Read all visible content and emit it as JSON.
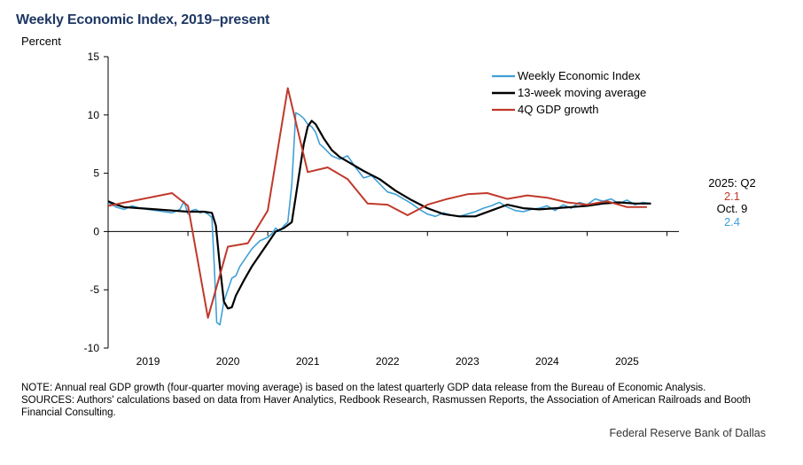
{
  "header": {
    "title": "Weekly Economic Index, 2019–present",
    "unit_label": "Percent"
  },
  "chart_data": {
    "type": "line",
    "title": "Weekly Economic Index, 2019–present",
    "ylabel": "Percent",
    "ylim": [
      -10,
      15
    ],
    "y_ticks": [
      15,
      10,
      5,
      0,
      -5,
      -10
    ],
    "xlim": [
      2018.0,
      2025.15
    ],
    "x_ticks": [
      2019,
      2020,
      2021,
      2022,
      2023,
      2024,
      2025
    ],
    "x_tick_labels": [
      "2019",
      "2020",
      "2021",
      "2022",
      "2023",
      "2024",
      "2025"
    ],
    "legend_position": "top-right",
    "grid": false,
    "series": [
      {
        "name": "Weekly Economic Index",
        "color": "#3fa0d6",
        "x": [
          2018.0,
          2018.1,
          2018.2,
          2018.3,
          2018.4,
          2018.5,
          2018.6,
          2018.7,
          2018.8,
          2018.9,
          2018.95,
          2019.0,
          2019.05,
          2019.1,
          2019.15,
          2019.2,
          2019.25,
          2019.3,
          2019.33,
          2019.36,
          2019.4,
          2019.45,
          2019.5,
          2019.55,
          2019.6,
          2019.65,
          2019.7,
          2019.8,
          2019.9,
          2020.0,
          2020.05,
          2020.1,
          2020.15,
          2020.2,
          2020.25,
          2020.3,
          2020.35,
          2020.4,
          2020.45,
          2020.5,
          2020.55,
          2020.6,
          2020.65,
          2020.7,
          2020.8,
          2020.9,
          2021.0,
          2021.1,
          2021.2,
          2021.3,
          2021.4,
          2021.5,
          2021.6,
          2021.7,
          2021.8,
          2021.9,
          2022.0,
          2022.1,
          2022.2,
          2022.3,
          2022.4,
          2022.5,
          2022.6,
          2022.7,
          2022.8,
          2022.9,
          2023.0,
          2023.1,
          2023.2,
          2023.3,
          2023.4,
          2023.5,
          2023.6,
          2023.7,
          2023.8,
          2023.9,
          2024.0,
          2024.1,
          2024.2,
          2024.3,
          2024.4,
          2024.5,
          2024.6,
          2024.7,
          2024.8
        ],
        "y": [
          2.5,
          2.1,
          1.9,
          2.2,
          2.0,
          1.9,
          1.8,
          1.7,
          1.6,
          1.9,
          2.6,
          1.5,
          1.8,
          1.9,
          1.6,
          1.7,
          1.5,
          1.2,
          -3.0,
          -7.8,
          -8.0,
          -6.0,
          -5.0,
          -4.0,
          -3.8,
          -3.0,
          -2.5,
          -1.5,
          -0.8,
          -0.5,
          -0.2,
          0.3,
          0.0,
          0.5,
          0.8,
          4.0,
          10.2,
          10.0,
          9.7,
          9.2,
          9.0,
          8.5,
          7.5,
          7.2,
          6.5,
          6.2,
          6.5,
          5.5,
          4.6,
          4.8,
          4.1,
          3.4,
          3.2,
          2.8,
          2.4,
          1.9,
          1.5,
          1.3,
          1.6,
          1.4,
          1.3,
          1.5,
          1.7,
          2.0,
          2.2,
          2.5,
          2.1,
          1.8,
          1.7,
          1.9,
          2.0,
          2.2,
          1.8,
          2.3,
          2.0,
          2.5,
          2.3,
          2.8,
          2.6,
          2.8,
          2.4,
          2.7,
          2.3,
          2.5,
          2.4
        ]
      },
      {
        "name": "13-week moving average",
        "color": "#000000",
        "x": [
          2018.0,
          2018.1,
          2018.2,
          2018.4,
          2018.6,
          2018.8,
          2019.0,
          2019.1,
          2019.2,
          2019.3,
          2019.35,
          2019.4,
          2019.45,
          2019.5,
          2019.55,
          2019.6,
          2019.7,
          2019.8,
          2019.9,
          2020.0,
          2020.1,
          2020.2,
          2020.3,
          2020.35,
          2020.45,
          2020.5,
          2020.55,
          2020.6,
          2020.7,
          2020.8,
          2020.9,
          2021.0,
          2021.2,
          2021.4,
          2021.6,
          2021.8,
          2022.0,
          2022.2,
          2022.4,
          2022.6,
          2022.8,
          2023.0,
          2023.2,
          2023.4,
          2023.6,
          2023.8,
          2024.0,
          2024.2,
          2024.4,
          2024.6,
          2024.8
        ],
        "y": [
          2.6,
          2.3,
          2.1,
          2.0,
          1.9,
          1.8,
          1.7,
          1.7,
          1.7,
          1.6,
          0.5,
          -3.0,
          -6.0,
          -6.6,
          -6.5,
          -5.5,
          -4.2,
          -3.0,
          -2.0,
          -1.0,
          0.0,
          0.3,
          0.8,
          3.0,
          7.5,
          9.0,
          9.5,
          9.2,
          8.0,
          7.0,
          6.4,
          6.0,
          5.2,
          4.5,
          3.5,
          2.7,
          2.0,
          1.5,
          1.3,
          1.3,
          1.8,
          2.3,
          2.0,
          1.9,
          2.0,
          2.1,
          2.2,
          2.4,
          2.5,
          2.4,
          2.4
        ]
      },
      {
        "name": "4Q GDP growth",
        "color": "#c0392b",
        "x": [
          2018.0,
          2018.8,
          2019.0,
          2019.25,
          2019.5,
          2019.75,
          2020.0,
          2020.25,
          2020.5,
          2020.75,
          2021.0,
          2021.25,
          2021.5,
          2021.75,
          2022.0,
          2022.25,
          2022.5,
          2022.75,
          2023.0,
          2023.25,
          2023.5,
          2023.75,
          2024.0,
          2024.25,
          2024.5,
          2024.75
        ],
        "y": [
          2.2,
          3.3,
          2.2,
          -7.4,
          -1.3,
          -1.0,
          1.8,
          12.3,
          5.1,
          5.5,
          4.5,
          2.4,
          2.3,
          1.4,
          2.3,
          2.8,
          3.2,
          3.3,
          2.8,
          3.1,
          2.9,
          2.5,
          2.3,
          2.6,
          2.1,
          2.1
        ]
      }
    ],
    "annotations": {
      "gdp_period": "2025: Q2",
      "gdp_value": "2.1",
      "wei_date": "Oct. 9",
      "wei_value": "2.4"
    }
  },
  "footer": {
    "note": "NOTE: Annual real GDP growth (four-quarter moving average) is based on the latest quarterly GDP data release from the Bureau of Economic Analysis.",
    "sources": "SOURCES: Authors' calculations based on data from Haver Analytics, Redbook Research, Rasmussen Reports, the Association of American Railroads and Booth Financial Consulting.",
    "credit": "Federal Reserve Bank of Dallas"
  }
}
